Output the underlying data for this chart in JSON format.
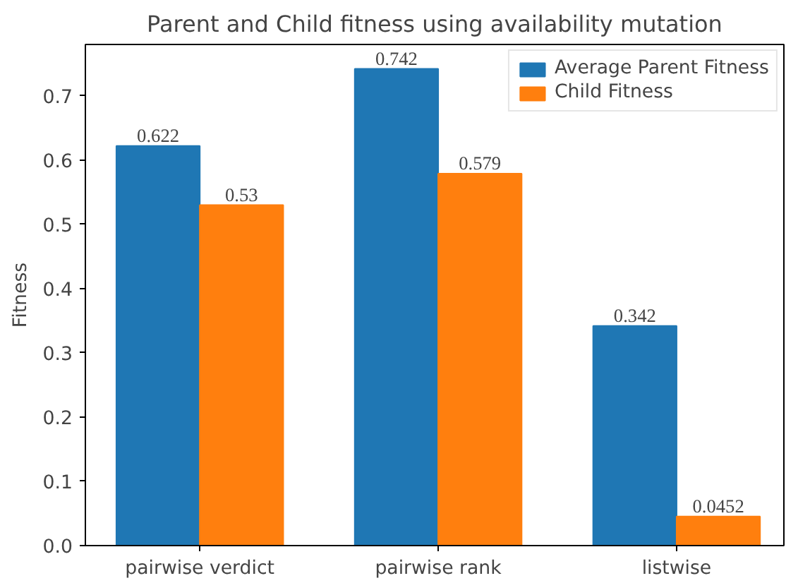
{
  "chart_data": {
    "type": "bar",
    "title": "Parent and Child fitness using availability mutation",
    "ylabel": "Fitness",
    "categories": [
      "pairwise verdict",
      "pairwise rank",
      "listwise"
    ],
    "series": [
      {
        "name": "Average Parent Fitness",
        "color": "#1f77b4",
        "values": [
          0.622,
          0.742,
          0.342
        ]
      },
      {
        "name": "Child Fitness",
        "color": "#ff7f0e",
        "values": [
          0.53,
          0.579,
          0.0452
        ]
      }
    ],
    "ylim": [
      0,
      0.78
    ],
    "yticks": [
      {
        "value": 0,
        "label": "0.0"
      },
      0.1,
      0.2,
      0.3,
      0.4,
      0.5,
      0.6,
      0.7
    ],
    "data_labels": true,
    "legend": "top right",
    "grid": false
  }
}
